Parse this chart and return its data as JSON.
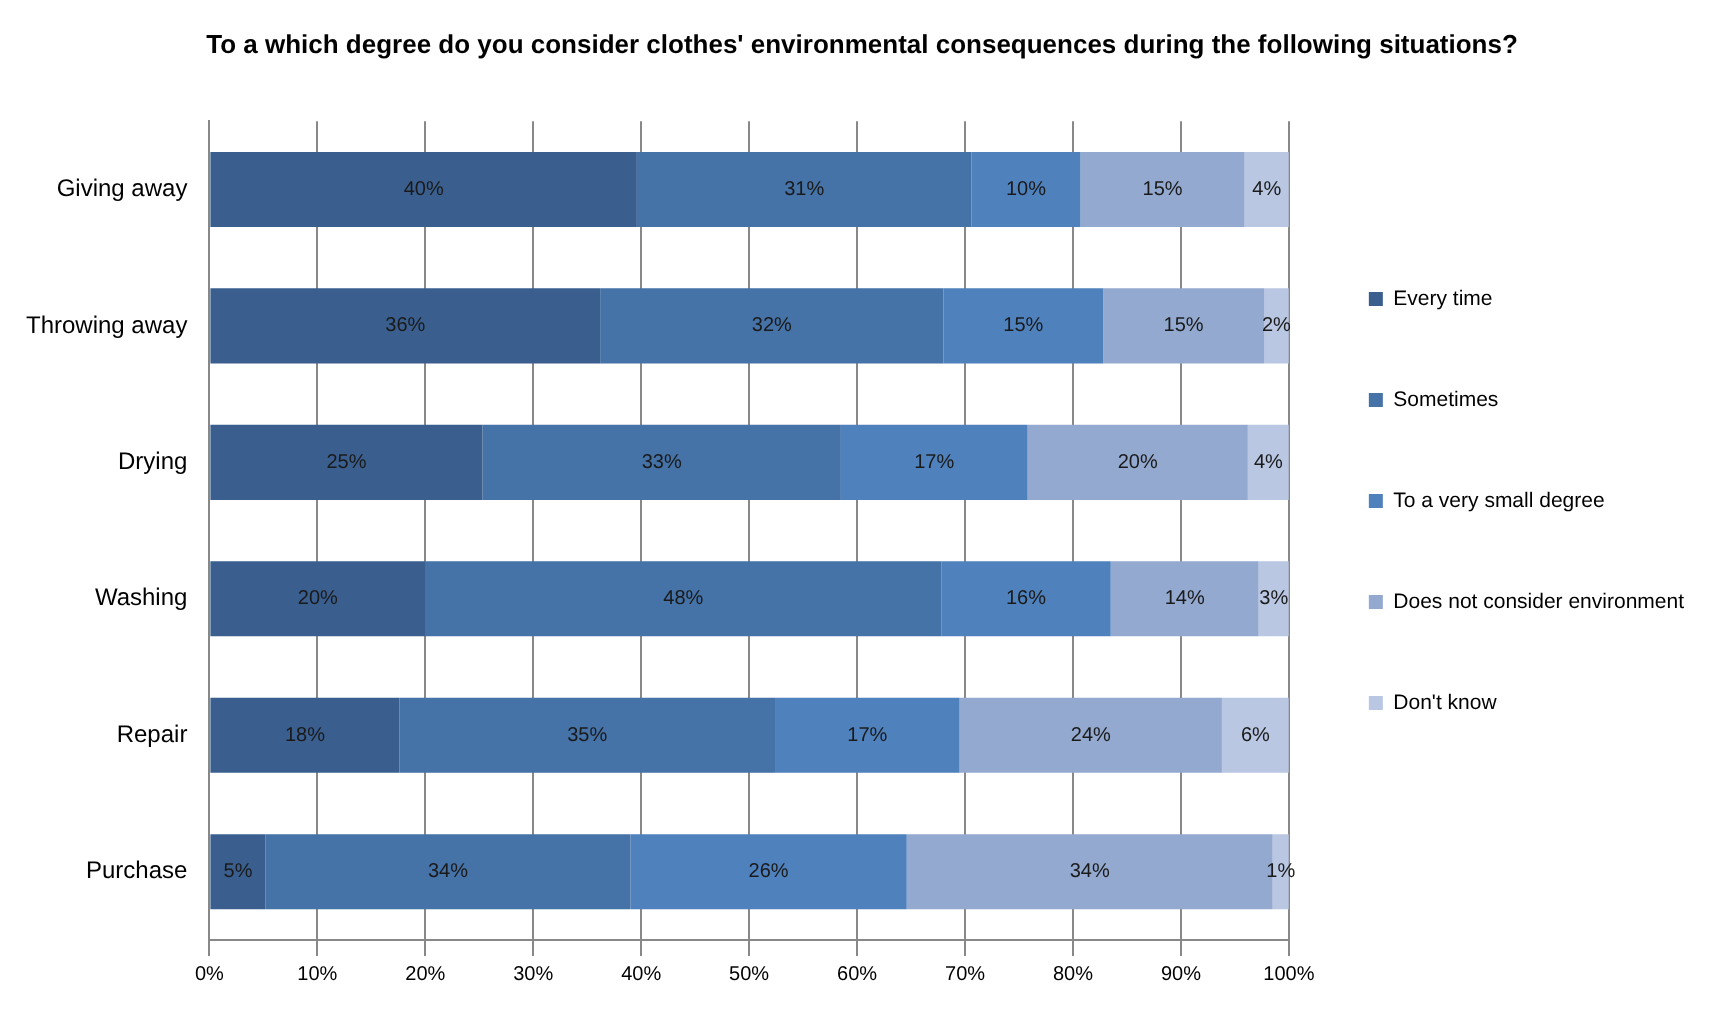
{
  "chart_data": {
    "type": "bar",
    "orientation": "horizontal",
    "stacked": true,
    "title": "To a which degree do you consider clothes' environmental consequences during the following situations?",
    "categories": [
      "Giving away",
      "Throwing away",
      "Drying",
      "Washing",
      "Repair",
      "Purchase"
    ],
    "series": [
      {
        "name": "Every time",
        "color": "#3a5f8f",
        "values": [
          39.6,
          36.2,
          25.3,
          20,
          17.6,
          5.2
        ],
        "value_labels": [
          "40%",
          "36%",
          "25%",
          "20%",
          "18%",
          "5%"
        ]
      },
      {
        "name": "Sometimes",
        "color": "#4572a7",
        "values": [
          31,
          31.8,
          33.2,
          47.8,
          34.8,
          33.8
        ],
        "value_labels": [
          "31%",
          "32%",
          "33%",
          "48%",
          "35%",
          "34%"
        ]
      },
      {
        "name": "To a very small degree",
        "color": "#4f81bd",
        "values": [
          10.1,
          14.8,
          17.3,
          15.7,
          17.1,
          25.6
        ],
        "value_labels": [
          "10%",
          "15%",
          "17%",
          "16%",
          "17%",
          "26%"
        ]
      },
      {
        "name": "Does not consider environment",
        "color": "#93a9cf",
        "values": [
          15.2,
          14.9,
          20.4,
          13.7,
          24.3,
          33.9
        ],
        "value_labels": [
          "15%",
          "15%",
          "20%",
          "14%",
          "24%",
          "34%"
        ]
      },
      {
        "name": "Don't know",
        "color": "#b9c7e3",
        "values": [
          4.1,
          2.3,
          3.8,
          2.8,
          6.2,
          1.5
        ],
        "value_labels": [
          "4%",
          "2%",
          "4%",
          "3%",
          "6%",
          "1%"
        ]
      }
    ],
    "xlim": [
      0,
      100
    ],
    "xticks": [
      {
        "value": 0,
        "label": "0%"
      },
      {
        "value": 10,
        "label": "10%"
      },
      {
        "value": 20,
        "label": "20%"
      },
      {
        "value": 30,
        "label": "30%"
      },
      {
        "value": 40,
        "label": "40%"
      },
      {
        "value": 50,
        "label": "50%"
      },
      {
        "value": 60,
        "label": "60%"
      },
      {
        "value": 70,
        "label": "70%"
      },
      {
        "value": 80,
        "label": "80%"
      },
      {
        "value": 90,
        "label": "90%"
      },
      {
        "value": 100,
        "label": "100%"
      }
    ],
    "grid": "x",
    "legend": "right"
  }
}
